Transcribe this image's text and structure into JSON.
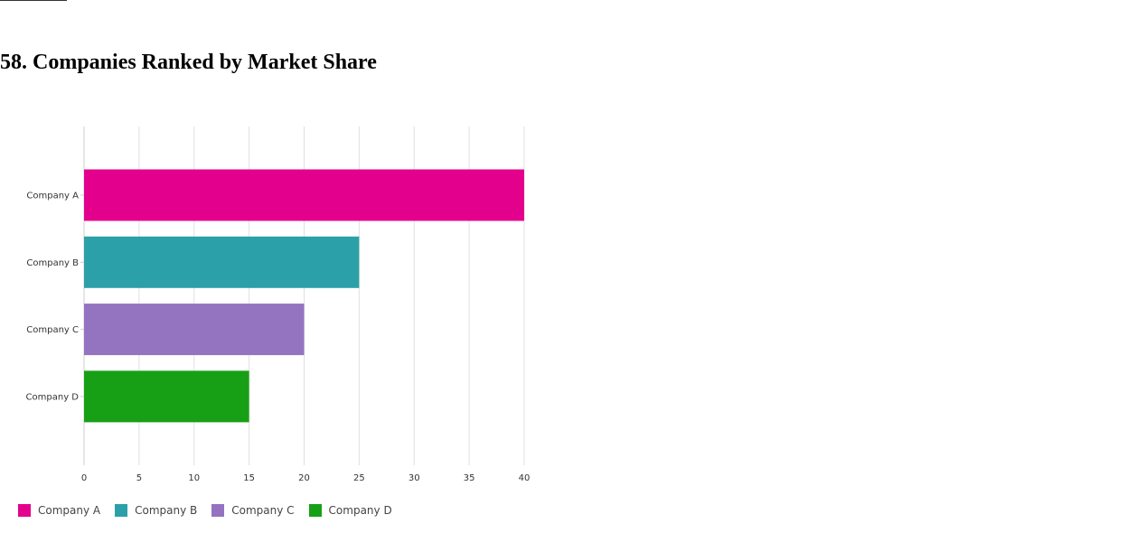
{
  "page": {
    "title": "58. Companies Ranked by Market Share"
  },
  "chart_data": {
    "type": "bar",
    "orientation": "horizontal",
    "title": "",
    "xlabel": "",
    "ylabel": "",
    "categories": [
      "Company A",
      "Company B",
      "Company C",
      "Company D"
    ],
    "values": [
      40,
      25,
      20,
      15
    ],
    "colors": [
      "#e3008c",
      "#2ca0a9",
      "#9473c0",
      "#17a015"
    ],
    "xlim": [
      0,
      40
    ],
    "xticks": [
      0,
      5,
      10,
      15,
      20,
      25,
      30,
      35,
      40
    ],
    "grid": true,
    "legend": {
      "placement": "bottom-left",
      "entries": [
        "Company A",
        "Company B",
        "Company C",
        "Company D"
      ]
    }
  }
}
